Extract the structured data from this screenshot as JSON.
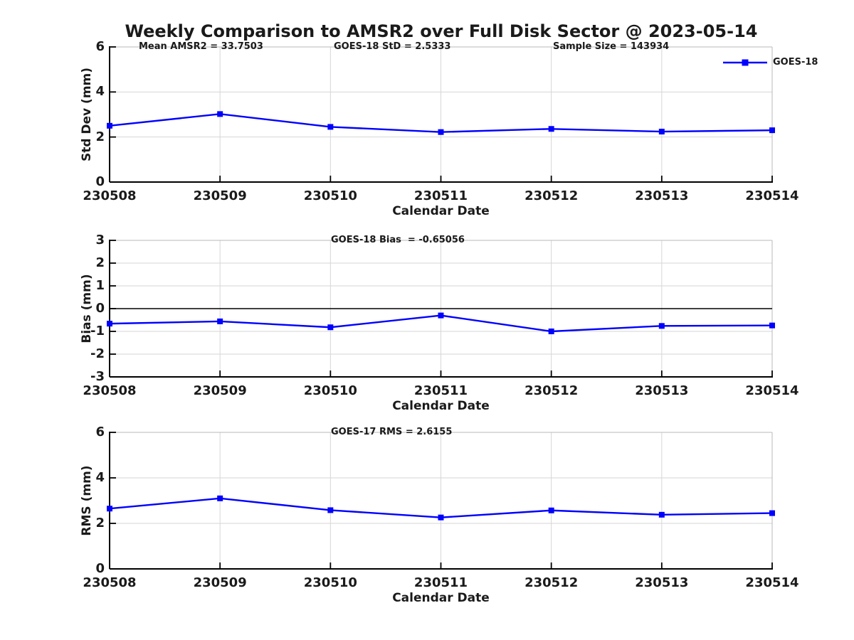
{
  "title": "Weekly Comparison to AMSR2 over Full Disk Sector @ 2023-05-14",
  "legend": {
    "label": "GOES-18",
    "color": "#0000FF",
    "marker": "square",
    "position": "top-right"
  },
  "colors": {
    "line": "#0000FF",
    "grid": "#d6d6d6",
    "box": "#b8b8b8",
    "axis": "#000000",
    "text": "#1a1a1a",
    "background": "#ffffff"
  },
  "chart_data": [
    {
      "type": "line",
      "panel": "std-dev",
      "annotations": [
        {
          "text": "Mean AMSR2 = 33.7503",
          "x": 195
        },
        {
          "text": "GOES-18 StD = 2.5333",
          "x": 469
        },
        {
          "text": "Sample Size = 143934",
          "x": 777
        }
      ],
      "x": [
        "230508",
        "230509",
        "230510",
        "230511",
        "230512",
        "230513",
        "230514"
      ],
      "series": [
        {
          "name": "GOES-18",
          "values": [
            2.5,
            3.02,
            2.45,
            2.22,
            2.36,
            2.24,
            2.3
          ]
        }
      ],
      "xlabel": "Calendar Date",
      "ylabel": "Std Dev (mm)",
      "ylim": [
        0,
        6
      ],
      "yticks": [
        0,
        2,
        4,
        6
      ],
      "grid": true,
      "zero_line": false,
      "legend": true
    },
    {
      "type": "line",
      "panel": "bias",
      "annotations": [
        {
          "text": "GOES-18 Bias  = -0.65056",
          "x": 465
        }
      ],
      "x": [
        "230508",
        "230509",
        "230510",
        "230511",
        "230512",
        "230513",
        "230514"
      ],
      "series": [
        {
          "name": "GOES-18",
          "values": [
            -0.66,
            -0.56,
            -0.82,
            -0.3,
            -1.0,
            -0.76,
            -0.74
          ]
        }
      ],
      "xlabel": "Calendar Date",
      "ylabel": "Bias (mm)",
      "ylim": [
        -3,
        3
      ],
      "yticks": [
        -3,
        -2,
        -1,
        0,
        1,
        2,
        3
      ],
      "grid": true,
      "zero_line": true,
      "legend": false
    },
    {
      "type": "line",
      "panel": "rms",
      "annotations": [
        {
          "text": "GOES-17 RMS = 2.6155",
          "x": 465
        }
      ],
      "x": [
        "230508",
        "230509",
        "230510",
        "230511",
        "230512",
        "230513",
        "230514"
      ],
      "series": [
        {
          "name": "GOES-18",
          "values": [
            2.65,
            3.1,
            2.58,
            2.26,
            2.57,
            2.38,
            2.45
          ]
        }
      ],
      "xlabel": "Calendar Date",
      "ylabel": "RMS (mm)",
      "ylim": [
        0,
        6
      ],
      "yticks": [
        0,
        2,
        4,
        6
      ],
      "grid": true,
      "zero_line": false,
      "legend": false
    }
  ]
}
